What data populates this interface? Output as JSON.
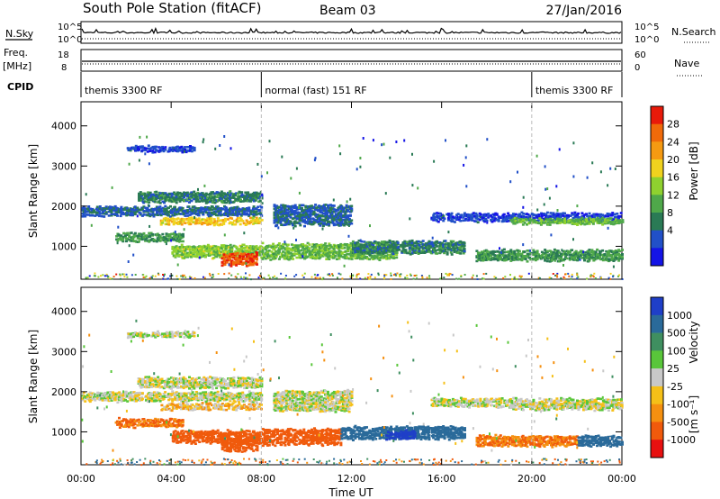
{
  "header": {
    "station": "South Pole Station (fitACF)",
    "beam": "Beam 03",
    "date": "27/Jan/2016"
  },
  "left_labels": {
    "nsky": "N.Sky",
    "freq": "Freq.",
    "freq_unit": "[MHz]",
    "cpid": "CPID"
  },
  "right_labels": {
    "nsearch": "N.Search",
    "nave": "Nave"
  },
  "strip_ticks": {
    "noise_left": [
      "10^5",
      "10^0"
    ],
    "noise_right": [
      "10^5",
      "10^0"
    ],
    "freq_left": [
      "18",
      "8"
    ],
    "freq_right": [
      "60",
      "0"
    ]
  },
  "cpid_segments": [
    {
      "label": "themis 3300 RF",
      "start_h": 0,
      "end_h": 8
    },
    {
      "label": "normal (fast) 151 RF",
      "start_h": 8,
      "end_h": 20
    },
    {
      "label": "themis 3300 RF",
      "start_h": 20,
      "end_h": 24
    }
  ],
  "axes": {
    "ylabel": "Slant Range [km]",
    "xlabel": "Time UT",
    "yticks": [
      "1000",
      "2000",
      "3000",
      "4000"
    ],
    "xticks": [
      "00:00",
      "04:00",
      "08:00",
      "12:00",
      "16:00",
      "20:00",
      "00:00"
    ]
  },
  "power_bar": {
    "title": "Power [dB]",
    "labels": [
      "4",
      "8",
      "12",
      "16",
      "20",
      "24",
      "28"
    ],
    "colors": [
      "#1414e6",
      "#2150c8",
      "#2a7a55",
      "#4fa84a",
      "#8fd12f",
      "#f0d21e",
      "#f59a12",
      "#f06a0a",
      "#e81a0a"
    ]
  },
  "velocity_bar": {
    "title": "Velocity",
    "unit": "[m s⁻¹]",
    "labels": [
      "1000",
      "500",
      "100",
      "25",
      "-25",
      "-100",
      "-500",
      "-1000"
    ],
    "colors": [
      "#1f3fc8",
      "#2a6a9a",
      "#3f8f60",
      "#59c63a",
      "#c8c8c8",
      "#f5c018",
      "#f59010",
      "#f05a0c",
      "#e81010"
    ]
  },
  "chart_data": [
    {
      "type": "heatmap",
      "name": "power",
      "xlabel": "Time UT",
      "ylabel": "Slant Range [km]",
      "xlim": [
        0,
        24
      ],
      "ylim": [
        180,
        4600
      ],
      "colorbar": {
        "label": "Power [dB]",
        "ticks": [
          4,
          8,
          12,
          16,
          20,
          24,
          28
        ]
      },
      "echo_bands": [
        {
          "t0": 0.0,
          "t1": 8.0,
          "r_center": 1900,
          "r_width": 220,
          "value_db": 8
        },
        {
          "t0": 2.5,
          "t1": 8.0,
          "r_center": 2250,
          "r_width": 250,
          "value_db": 10
        },
        {
          "t0": 3.5,
          "t1": 8.0,
          "r_center": 1650,
          "r_width": 150,
          "value_db": 20
        },
        {
          "t0": 1.5,
          "t1": 4.5,
          "r_center": 1250,
          "r_width": 200,
          "value_db": 12
        },
        {
          "t0": 4.0,
          "t1": 8.0,
          "r_center": 900,
          "r_width": 300,
          "value_db": 16
        },
        {
          "t0": 6.2,
          "t1": 7.8,
          "r_center": 700,
          "r_width": 300,
          "value_db": 27
        },
        {
          "t0": 8.0,
          "t1": 14.0,
          "r_center": 900,
          "r_width": 380,
          "value_db": 14
        },
        {
          "t0": 8.5,
          "t1": 12.0,
          "r_center": 1800,
          "r_width": 500,
          "value_db": 8
        },
        {
          "t0": 12.0,
          "t1": 17.0,
          "r_center": 1000,
          "r_width": 300,
          "value_db": 10
        },
        {
          "t0": 15.5,
          "t1": 24.0,
          "r_center": 1750,
          "r_width": 200,
          "value_db": 6
        },
        {
          "t0": 19.0,
          "t1": 24.0,
          "r_center": 1650,
          "r_width": 130,
          "value_db": 14
        },
        {
          "t0": 17.5,
          "t1": 24.0,
          "r_center": 800,
          "r_width": 250,
          "value_db": 12
        },
        {
          "t0": 2.0,
          "t1": 5.0,
          "r_center": 3450,
          "r_width": 120,
          "value_db": 6
        }
      ]
    },
    {
      "type": "heatmap",
      "name": "velocity",
      "xlabel": "Time UT",
      "ylabel": "Slant Range [km]",
      "xlim": [
        0,
        24
      ],
      "ylim": [
        180,
        4600
      ],
      "colorbar": {
        "label": "Velocity [m s⁻¹]",
        "ticks": [
          1000,
          500,
          100,
          25,
          -25,
          -100,
          -500,
          -1000
        ]
      },
      "echo_bands": [
        {
          "t0": 0.0,
          "t1": 8.0,
          "r_center": 1900,
          "r_width": 220,
          "value_ms": 0
        },
        {
          "t0": 2.5,
          "t1": 8.0,
          "r_center": 2250,
          "r_width": 250,
          "value_ms": 0
        },
        {
          "t0": 3.5,
          "t1": 8.0,
          "r_center": 1650,
          "r_width": 150,
          "value_ms": -50
        },
        {
          "t0": 1.5,
          "t1": 4.5,
          "r_center": 1250,
          "r_width": 200,
          "value_ms": -300
        },
        {
          "t0": 4.0,
          "t1": 8.0,
          "r_center": 900,
          "r_width": 300,
          "value_ms": -400
        },
        {
          "t0": 6.2,
          "t1": 7.8,
          "r_center": 700,
          "r_width": 300,
          "value_ms": -400
        },
        {
          "t0": 8.0,
          "t1": 11.5,
          "r_center": 900,
          "r_width": 380,
          "value_ms": -450
        },
        {
          "t0": 11.5,
          "t1": 17.0,
          "r_center": 1000,
          "r_width": 300,
          "value_ms": 400
        },
        {
          "t0": 13.5,
          "t1": 14.8,
          "r_center": 950,
          "r_width": 200,
          "value_ms": 900
        },
        {
          "t0": 8.5,
          "t1": 12.0,
          "r_center": 1800,
          "r_width": 500,
          "value_ms": 0
        },
        {
          "t0": 15.5,
          "t1": 24.0,
          "r_center": 1750,
          "r_width": 200,
          "value_ms": 0
        },
        {
          "t0": 19.0,
          "t1": 24.0,
          "r_center": 1650,
          "r_width": 130,
          "value_ms": 0
        },
        {
          "t0": 17.5,
          "t1": 22.0,
          "r_center": 800,
          "r_width": 250,
          "value_ms": -300
        },
        {
          "t0": 22.0,
          "t1": 24.0,
          "r_center": 800,
          "r_width": 250,
          "value_ms": 400
        },
        {
          "t0": 2.0,
          "t1": 5.0,
          "r_center": 3450,
          "r_width": 120,
          "value_ms": 0
        }
      ]
    }
  ]
}
